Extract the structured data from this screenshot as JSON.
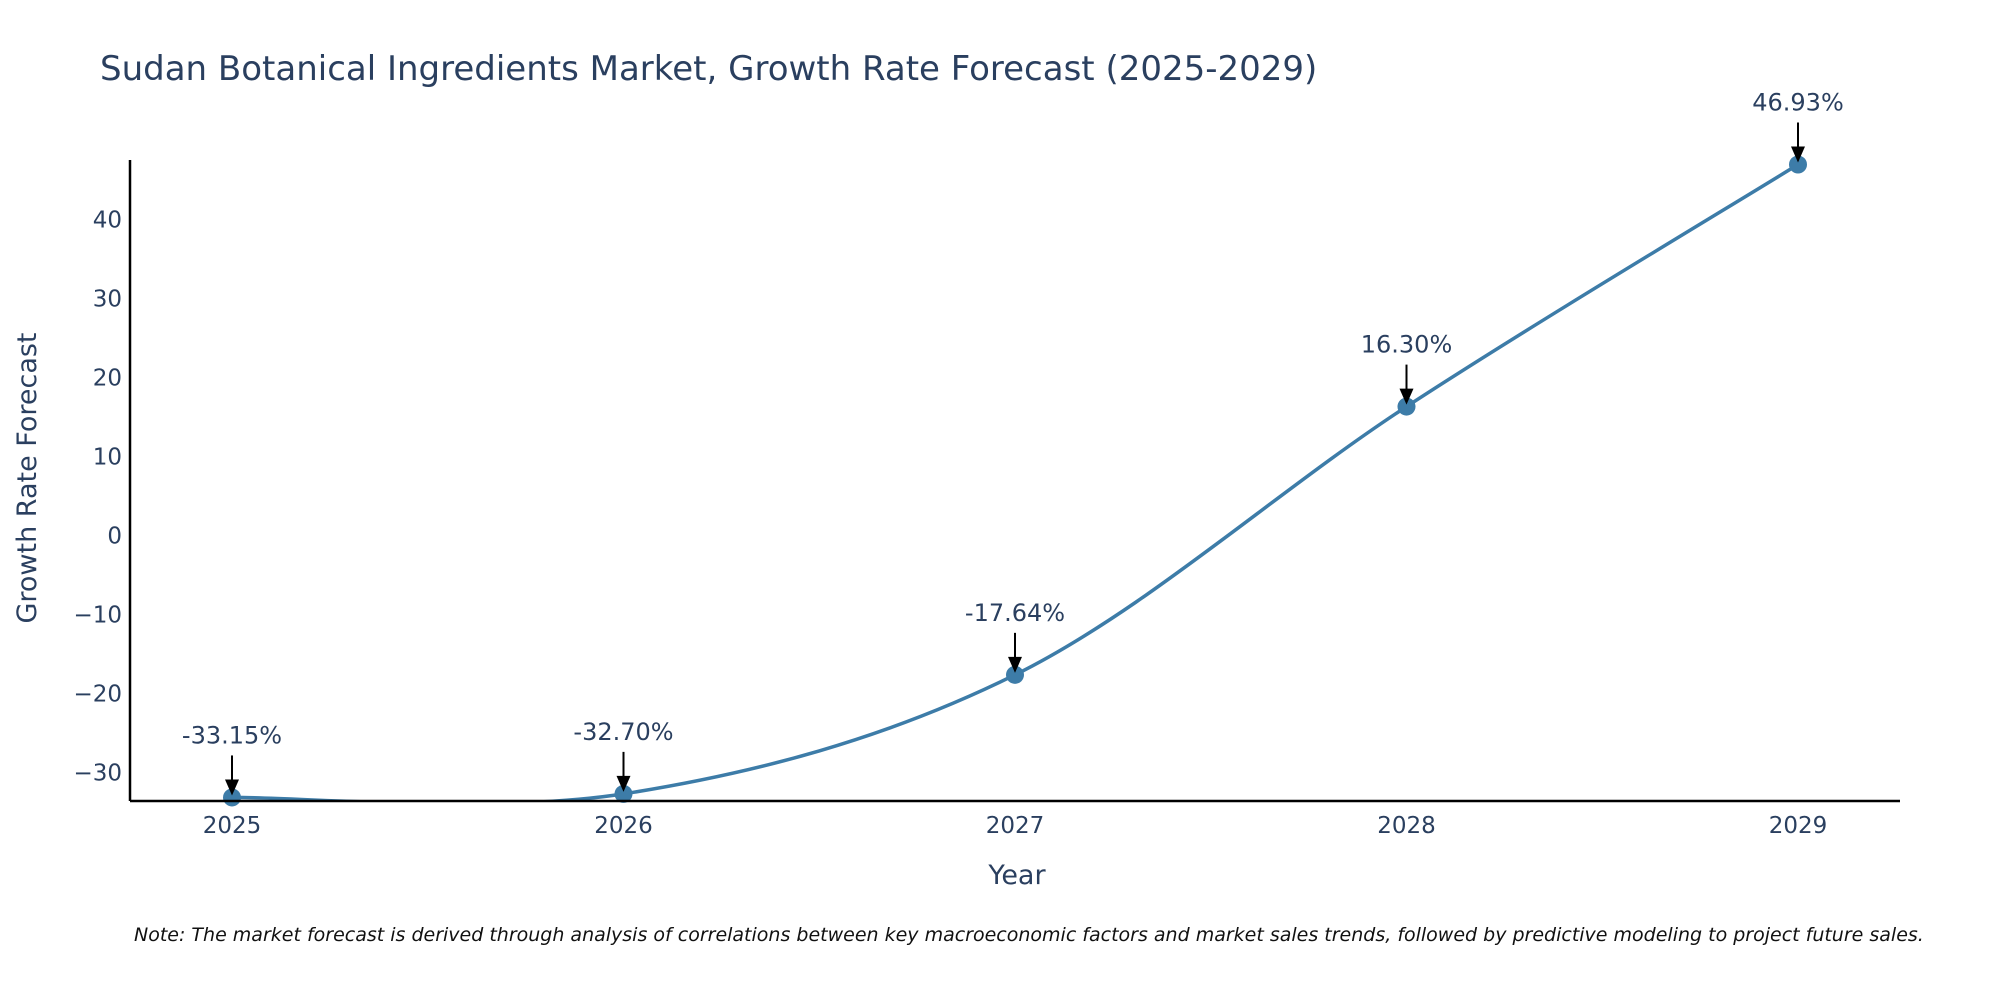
{
  "chart_data": {
    "type": "line",
    "title": "Sudan Botanical Ingredients Market, Growth Rate Forecast (2025-2029)",
    "xlabel": "Year",
    "ylabel": "Growth Rate Forecast",
    "categories": [
      "2025",
      "2026",
      "2027",
      "2028",
      "2029"
    ],
    "series": [
      {
        "name": "Growth Rate Forecast",
        "values": [
          -33.15,
          -32.7,
          -17.64,
          16.3,
          46.93
        ],
        "color": "#3d7ca8"
      }
    ],
    "annotations": [
      "-33.15%",
      "-32.70%",
      "-17.64%",
      "16.30%",
      "46.93%"
    ],
    "yticks": [
      {
        "value": -30,
        "label": "−30"
      },
      {
        "value": -20,
        "label": "−20"
      },
      {
        "value": -10,
        "label": "−10"
      },
      {
        "value": 0,
        "label": "0"
      },
      {
        "value": 10,
        "label": "10"
      },
      {
        "value": 20,
        "label": "20"
      },
      {
        "value": 30,
        "label": "30"
      },
      {
        "value": 40,
        "label": "40"
      }
    ],
    "ylim": [
      -33.6,
      47.5
    ],
    "grid": false,
    "legend": "none",
    "note": "Note: The market forecast is derived through analysis of correlations between key macroeconomic factors and market sales trends, followed by predictive modeling to project future sales."
  }
}
